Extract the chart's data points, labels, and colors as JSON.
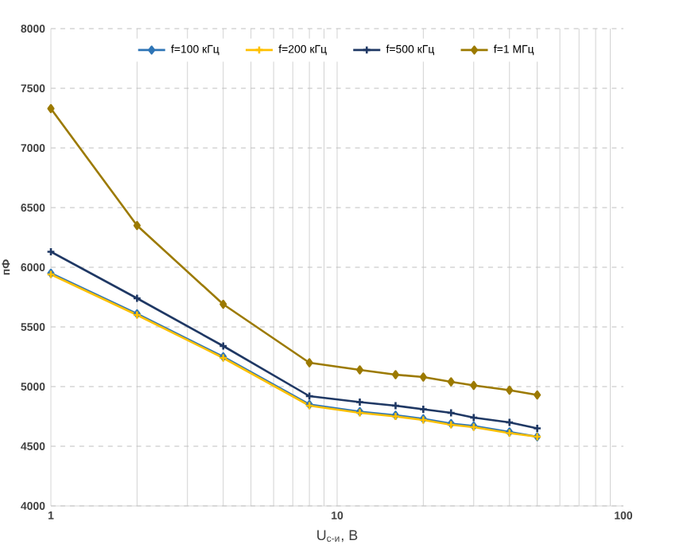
{
  "chart_data": {
    "type": "line",
    "xlabel": "U$_{с-и}$, В",
    "ylabel": "пФ",
    "log": "x",
    "grid": true,
    "legend": "top",
    "xlim": [
      1,
      100
    ],
    "xticks": [
      1,
      10,
      100
    ],
    "ylim": [
      4000,
      8000
    ],
    "yticks": [
      4000,
      4500,
      5000,
      5500,
      6000,
      6500,
      7000,
      7500,
      8000
    ],
    "x": [
      1,
      2,
      4,
      8,
      12,
      16,
      20,
      25,
      30,
      40,
      50
    ],
    "series": [
      {
        "name": "f=100 кГц",
        "color": "#2e75b6",
        "marker": "diamond",
        "values": [
          5950,
          5610,
          5250,
          4850,
          4790,
          4760,
          4730,
          4690,
          4670,
          4620,
          4580
        ]
      },
      {
        "name": "f=200 кГц",
        "color": "#ffc000",
        "marker": "cross",
        "values": [
          5940,
          5600,
          5240,
          4840,
          4780,
          4750,
          4720,
          4680,
          4660,
          4610,
          4580
        ]
      },
      {
        "name": "f=500 кГц",
        "color": "#1f3864",
        "marker": "cross",
        "values": [
          6130,
          5740,
          5340,
          4920,
          4870,
          4840,
          4810,
          4780,
          4740,
          4700,
          4650
        ]
      },
      {
        "name": "f=1 МГц",
        "color": "#9c7a00",
        "marker": "diamond",
        "values": [
          7330,
          6350,
          5690,
          5200,
          5140,
          5100,
          5080,
          5040,
          5010,
          4970,
          4930
        ]
      }
    ]
  }
}
